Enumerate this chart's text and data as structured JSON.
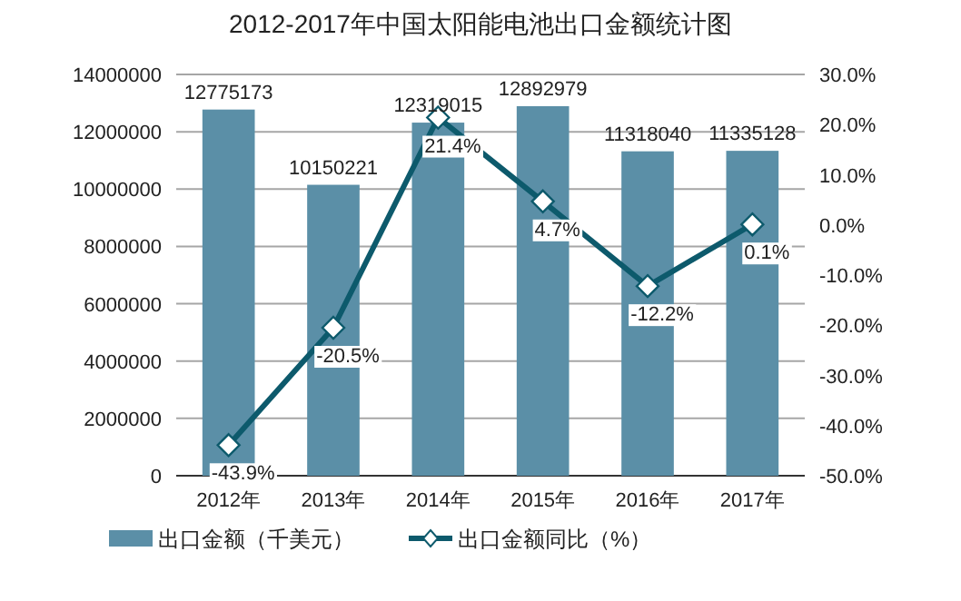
{
  "chart_data": {
    "type": "bar",
    "title": "2012-2017年中国太阳能电池出口金额统计图",
    "categories": [
      "2012年",
      "2013年",
      "2014年",
      "2015年",
      "2016年",
      "2017年"
    ],
    "series": [
      {
        "name": "出口金额（千美元）",
        "color": "#5b8fa7",
        "values": [
          12775173,
          10150221,
          12319015,
          12892979,
          11318040,
          11335128
        ]
      },
      {
        "name": "出口金额同比（%）",
        "type": "line",
        "axis": "y2",
        "color": "#0d5a6c",
        "marker": "diamond",
        "values": [
          -43.9,
          -20.5,
          21.4,
          4.7,
          -12.2,
          0.1
        ],
        "value_labels": [
          "-43.9%",
          "-20.5%",
          "21.4%",
          "4.7%",
          "-12.2%",
          "0.1%"
        ]
      }
    ],
    "ylim": [
      0,
      14000000
    ],
    "yticks": [
      0,
      2000000,
      4000000,
      6000000,
      8000000,
      10000000,
      12000000,
      14000000
    ],
    "y2lim": [
      -50,
      30
    ],
    "y2ticks": [
      {
        "value": -50,
        "label": "-50.0%"
      },
      {
        "value": -40,
        "label": "-40.0%"
      },
      {
        "value": -30,
        "label": "-30.0%"
      },
      {
        "value": -20,
        "label": "-20.0%"
      },
      {
        "value": -10,
        "label": "-10.0%"
      },
      {
        "value": 0,
        "label": "0.0%"
      },
      {
        "value": 10,
        "label": "10.0%"
      },
      {
        "value": 20,
        "label": "20.0%"
      },
      {
        "value": 30,
        "label": "30.0%"
      }
    ],
    "data_labels": true,
    "grid": "y",
    "legend": "bottom"
  }
}
